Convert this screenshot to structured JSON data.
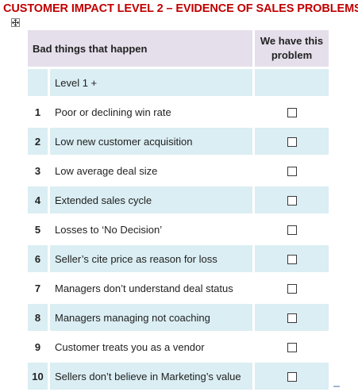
{
  "title": "CUSTOMER IMPACT LEVEL 2 – EVIDENCE OF SALES PROBLEMS",
  "header": {
    "left": "Bad things that happen",
    "right_line1": "We have this",
    "right_line2": "problem"
  },
  "level_row": {
    "label": "Level 1 +"
  },
  "rows": [
    {
      "num": "1",
      "text": "Poor or declining win rate"
    },
    {
      "num": "2",
      "text": "Low new customer acquisition"
    },
    {
      "num": "3",
      "text": "Low average deal size"
    },
    {
      "num": "4",
      "text": "Extended sales cycle"
    },
    {
      "num": "5",
      "text": "Losses to ‘No Decision’"
    },
    {
      "num": "6",
      "text": "Seller’s cite price as reason for loss"
    },
    {
      "num": "7",
      "text": "Managers don’t understand deal status"
    },
    {
      "num": "8",
      "text": "Managers managing not coaching"
    },
    {
      "num": "9",
      "text": "Customer treats you as a vendor"
    },
    {
      "num": "10",
      "text": "Sellers don’t believe in Marketing’s value"
    }
  ],
  "colors": {
    "title": "#c00000",
    "header_bg": "#e5dfeb",
    "row_shade": "#daeef3"
  },
  "icons": {
    "table_handle": "move-handle-icon",
    "checkbox": "empty-checkbox"
  }
}
